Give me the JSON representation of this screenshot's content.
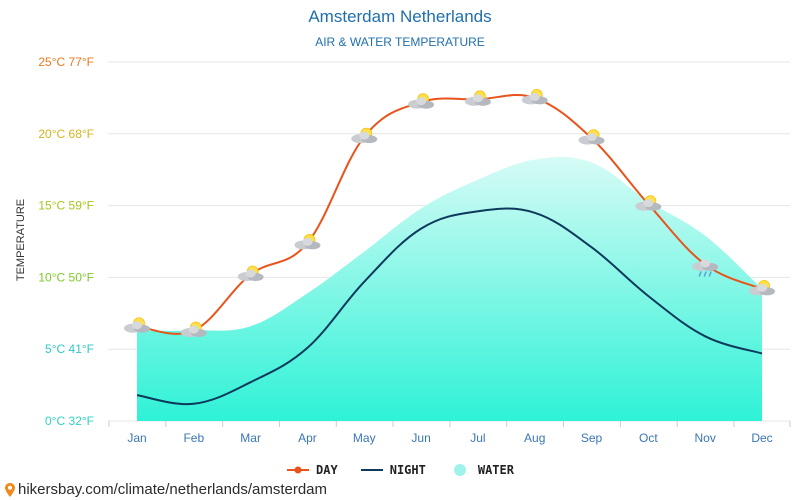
{
  "title": "Amsterdam Netherlands",
  "subtitle": "AIR & WATER TEMPERATURE",
  "source_link": "hikersbay.com/climate/netherlands/amsterdam",
  "colors": {
    "day": "#e8541b",
    "night": "#0d3a5c",
    "water_fill_top": "#d6fbf6",
    "water_fill_bottom": "#2ef2d6",
    "grid": "#e6e6e6",
    "title": "#1f6fae"
  },
  "chart_data": {
    "type": "line",
    "categories": [
      "Jan",
      "Feb",
      "Mar",
      "Apr",
      "May",
      "Jun",
      "Jul",
      "Aug",
      "Sep",
      "Oct",
      "Nov",
      "Dec"
    ],
    "ylabel": "TEMPERATURE",
    "ylim": [
      0,
      25
    ],
    "yticks": [
      {
        "value": 0,
        "label": "0°C 32°F",
        "color": "#2fd4c3"
      },
      {
        "value": 5,
        "label": "5°C 41°F",
        "color": "#2fc7c7"
      },
      {
        "value": 10,
        "label": "10°C 50°F",
        "color": "#7fc92a"
      },
      {
        "value": 15,
        "label": "15°C 59°F",
        "color": "#a5c820"
      },
      {
        "value": 20,
        "label": "20°C 68°F",
        "color": "#d4b61c"
      },
      {
        "value": 25,
        "label": "25°C 77°F",
        "color": "#e87a1e"
      }
    ],
    "grid": true,
    "legend_position": "bottom-center",
    "series": [
      {
        "name": "DAY",
        "key": "day",
        "values": [
          6.6,
          6.3,
          10.2,
          12.4,
          19.8,
          22.2,
          22.4,
          22.5,
          19.7,
          15.1,
          10.9,
          9.2
        ],
        "weather_icons": [
          "partly-cloudy-icon",
          "partly-cloudy-icon",
          "partly-cloudy-icon",
          "partly-cloudy-icon",
          "partly-cloudy-icon",
          "partly-cloudy-icon",
          "partly-cloudy-icon",
          "partly-cloudy-icon",
          "partly-cloudy-icon",
          "partly-cloudy-icon",
          "rain-cloud-icon",
          "partly-cloudy-icon"
        ]
      },
      {
        "name": "NIGHT",
        "key": "night",
        "values": [
          1.8,
          1.2,
          2.7,
          5.1,
          9.7,
          13.4,
          14.6,
          14.5,
          12.1,
          8.7,
          5.9,
          4.7
        ]
      },
      {
        "name": "WATER",
        "key": "water",
        "values": [
          6.3,
          6.3,
          6.6,
          8.9,
          11.8,
          14.8,
          16.8,
          18.2,
          18.0,
          15.3,
          12.9,
          9.2
        ]
      }
    ]
  }
}
